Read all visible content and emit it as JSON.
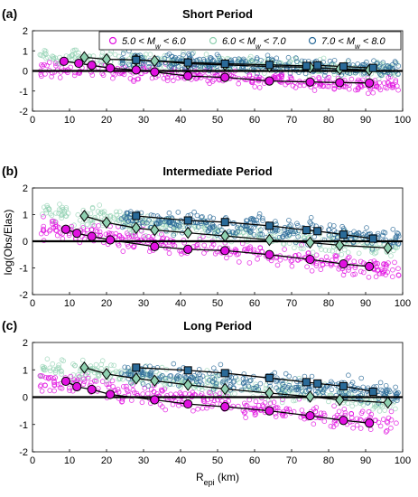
{
  "chart_data": {
    "type": "scatter",
    "xlabel": "R",
    "xlabel_sub": "epi",
    "xlabel_unit": "(km)",
    "ylabel": "log(Obs/Elas)",
    "xlim": [
      0,
      100
    ],
    "ylim": [
      -2,
      2
    ],
    "x_ticks": [
      0,
      10,
      20,
      30,
      40,
      50,
      60,
      70,
      80,
      90,
      100
    ],
    "y_ticks": [
      -2,
      -1,
      0,
      1,
      2
    ],
    "reference_line_y": 0,
    "legend": {
      "placement": "top",
      "entries": [
        {
          "pre": "5.0 < M",
          "sub": "w",
          "post": " < 6.0",
          "color": "#e010e0"
        },
        {
          "pre": "6.0 < M",
          "sub": "w",
          "post": " < 7.0",
          "color": "#8fd0b0"
        },
        {
          "pre": "7.0 < M",
          "sub": "w",
          "post": " < 8.0",
          "color": "#2a6a98"
        }
      ]
    },
    "scatter_colors": {
      "small": "#e010e0",
      "medium": "#8fd0b0",
      "large": "#2a6a98"
    },
    "scatter_centers": {
      "short": {
        "small": [
          0.15,
          -0.75
        ],
        "medium": [
          0.7,
          0.05
        ],
        "large": [
          0.65,
          0.1
        ]
      },
      "intermediate": {
        "small": [
          0.5,
          -1.1
        ],
        "medium": [
          1.1,
          -0.3
        ],
        "large": [
          1.1,
          0.1
        ]
      },
      "long": {
        "small": [
          0.6,
          -1.0
        ],
        "medium": [
          1.15,
          -0.25
        ],
        "large": [
          1.1,
          0.15
        ]
      }
    },
    "scatter_spread": 0.38,
    "panels": [
      {
        "label": "(a)",
        "title": "Short Period",
        "show_legend": true,
        "series": [
          {
            "name": "5.0 < Mw < 6.0",
            "color": "#e010e0",
            "marker": "circle",
            "x": [
              8.5,
              12.5,
              16,
              21,
              28,
              33,
              42,
              52,
              64,
              75,
              83,
              91
            ],
            "y": [
              0.48,
              0.38,
              0.28,
              0.14,
              0.05,
              -0.05,
              -0.25,
              -0.32,
              -0.5,
              -0.55,
              -0.58,
              -0.6
            ]
          },
          {
            "name": "6.0 < Mw < 7.0",
            "color": "#8fd0b0",
            "marker": "diamond",
            "x": [
              14,
              20,
              28,
              33,
              42,
              52,
              64,
              75,
              83,
              91
            ],
            "y": [
              0.68,
              0.58,
              0.55,
              0.5,
              0.36,
              0.3,
              0.22,
              0.18,
              0.1,
              0.05
            ]
          },
          {
            "name": "7.0 < Mw < 8.0",
            "color": "#2a6a98",
            "marker": "square",
            "x": [
              28,
              42,
              52,
              64,
              74,
              77,
              84,
              92
            ],
            "y": [
              0.55,
              0.42,
              0.36,
              0.3,
              0.25,
              0.28,
              0.22,
              0.15
            ]
          }
        ]
      },
      {
        "label": "(b)",
        "title": "Intermediate Period",
        "show_legend": false,
        "series": [
          {
            "name": "5.0 < Mw < 6.0",
            "color": "#e010e0",
            "marker": "circle",
            "x": [
              9,
              12,
              16,
              21,
              33,
              42,
              52,
              64,
              75,
              84,
              91
            ],
            "y": [
              0.45,
              0.3,
              0.18,
              0.05,
              -0.2,
              -0.3,
              -0.35,
              -0.5,
              -0.68,
              -0.85,
              -0.95
            ]
          },
          {
            "name": "6.0 < Mw < 7.0",
            "color": "#8fd0b0",
            "marker": "diamond",
            "x": [
              14,
              20,
              28,
              33,
              42,
              52,
              64,
              75,
              83,
              96
            ],
            "y": [
              0.95,
              0.7,
              0.5,
              0.42,
              0.32,
              0.2,
              0.05,
              -0.05,
              -0.15,
              -0.25
            ]
          },
          {
            "name": "7.0 < Mw < 8.0",
            "color": "#2a6a98",
            "marker": "square",
            "x": [
              28,
              42,
              52,
              64,
              74,
              77,
              84,
              92
            ],
            "y": [
              0.95,
              0.78,
              0.72,
              0.58,
              0.42,
              0.38,
              0.25,
              0.1
            ]
          }
        ]
      },
      {
        "label": "(c)",
        "title": "Long Period",
        "show_legend": false,
        "series": [
          {
            "name": "5.0 < Mw < 6.0",
            "color": "#e010e0",
            "marker": "circle",
            "x": [
              9,
              12,
              16,
              21,
              33,
              42,
              52,
              64,
              75,
              84,
              91
            ],
            "y": [
              0.58,
              0.38,
              0.28,
              0.1,
              -0.1,
              -0.25,
              -0.35,
              -0.5,
              -0.68,
              -0.85,
              -0.95
            ]
          },
          {
            "name": "6.0 < Mw < 7.0",
            "color": "#8fd0b0",
            "marker": "diamond",
            "x": [
              14,
              20,
              28,
              33,
              42,
              52,
              64,
              75,
              83,
              96
            ],
            "y": [
              1.08,
              0.85,
              0.68,
              0.6,
              0.45,
              0.3,
              0.15,
              0.02,
              -0.1,
              -0.2
            ]
          },
          {
            "name": "7.0 < Mw < 8.0",
            "color": "#2a6a98",
            "marker": "square",
            "x": [
              28,
              42,
              52,
              64,
              74,
              77,
              84,
              92
            ],
            "y": [
              1.08,
              0.98,
              0.88,
              0.7,
              0.55,
              0.5,
              0.4,
              0.2
            ]
          }
        ]
      }
    ]
  }
}
